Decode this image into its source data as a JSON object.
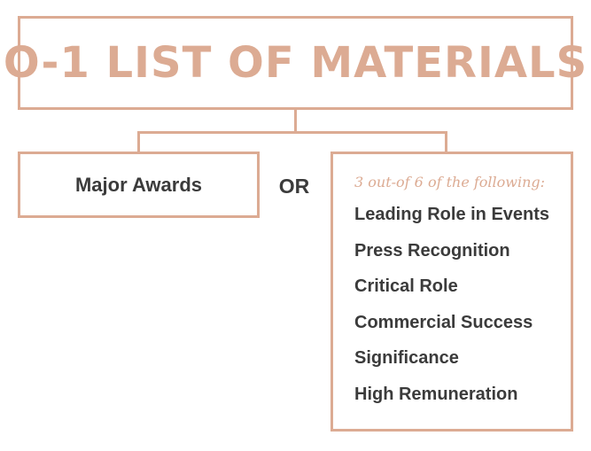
{
  "title": "O-1 LIST OF MATERIALS",
  "left_option": "Major Awards",
  "connector": "OR",
  "right_option": {
    "intro": "3 out-of 6 of the following:",
    "items": [
      "Leading Role in Events",
      "Press Recognition",
      "Critical Role",
      "Commercial Success",
      "Significance",
      "High Remuneration"
    ]
  },
  "colors": {
    "accent": "#dcab93",
    "text": "#3b3b3b",
    "background": "#ffffff"
  }
}
